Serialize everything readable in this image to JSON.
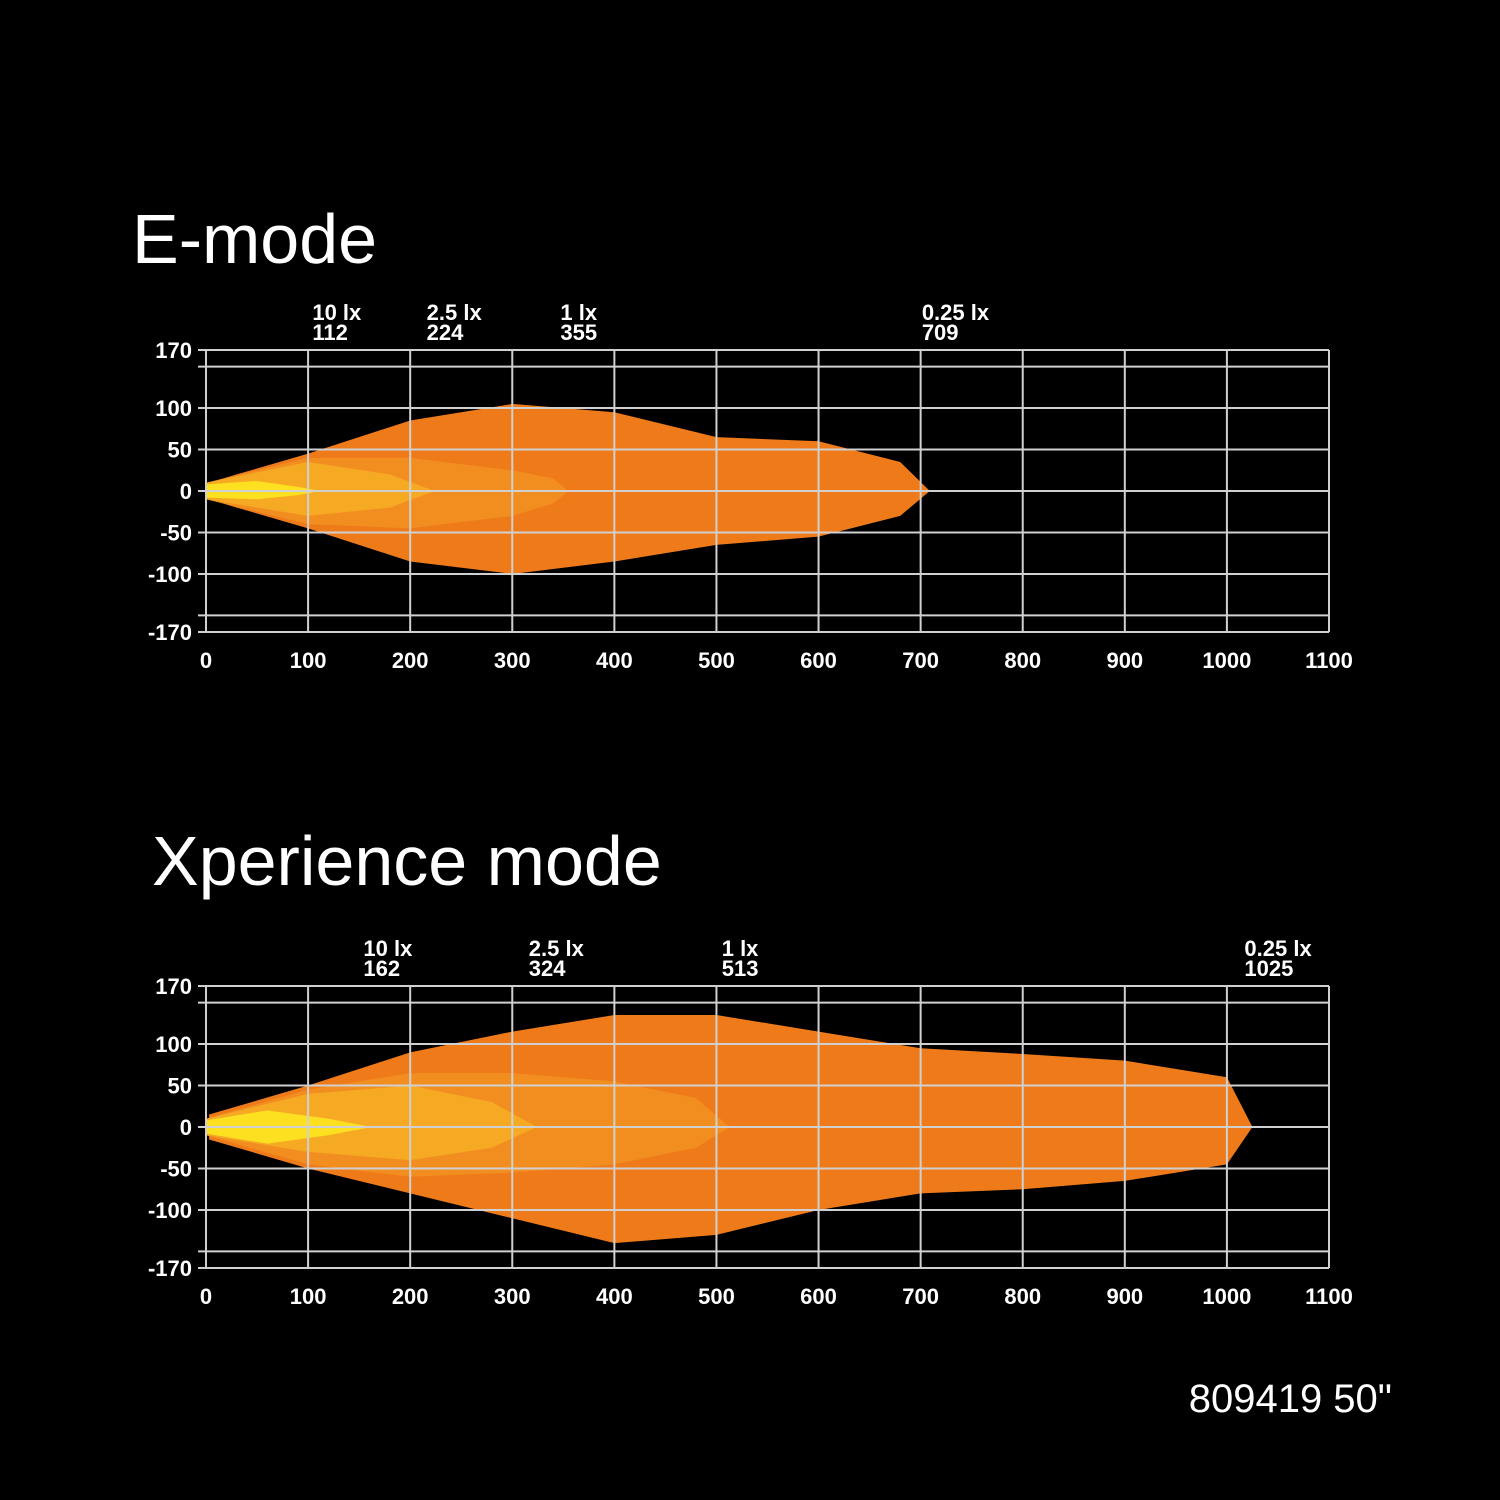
{
  "chart_data": [
    {
      "type": "isolux",
      "title": "E-mode",
      "xlim": [
        0,
        1100
      ],
      "ylim": [
        -170,
        170
      ],
      "xticks": [
        0,
        100,
        200,
        300,
        400,
        500,
        600,
        700,
        800,
        900,
        1000,
        1100
      ],
      "yticks": [
        -170,
        {
          "value": -150,
          "label": null
        },
        -100,
        -50,
        0,
        50,
        100,
        {
          "value": 150,
          "label": null
        },
        170
      ],
      "grid": true,
      "series": [
        {
          "name": "0.25 lx",
          "reach": 709,
          "color": "#ee7a1a",
          "x": [
            3,
            30,
            100,
            200,
            300,
            400,
            500,
            600,
            680,
            709
          ],
          "upper": [
            10,
            20,
            45,
            85,
            105,
            95,
            65,
            60,
            35,
            0
          ],
          "lower": [
            -10,
            -20,
            -45,
            -85,
            -100,
            -85,
            -65,
            -55,
            -30,
            0
          ]
        },
        {
          "name": "1 lx",
          "reach": 355,
          "color": "#f28e1f",
          "x": [
            0,
            100,
            200,
            300,
            340,
            355
          ],
          "upper": [
            10,
            40,
            40,
            25,
            15,
            0
          ],
          "lower": [
            -10,
            -40,
            -45,
            -30,
            -15,
            0
          ]
        },
        {
          "name": "2.5 lx",
          "reach": 224,
          "color": "#f6aa24",
          "x": [
            0,
            100,
            180,
            224
          ],
          "upper": [
            10,
            35,
            20,
            0
          ],
          "lower": [
            -10,
            -30,
            -20,
            0
          ]
        },
        {
          "name": "10 lx",
          "reach": 112,
          "color": "#fde020",
          "x": [
            0,
            50,
            90,
            112
          ],
          "upper": [
            8,
            12,
            5,
            0
          ],
          "lower": [
            -8,
            -10,
            -5,
            0
          ]
        }
      ]
    },
    {
      "type": "isolux",
      "title": "Xperience mode",
      "xlim": [
        0,
        1100
      ],
      "ylim": [
        -170,
        170
      ],
      "xticks": [
        0,
        100,
        200,
        300,
        400,
        500,
        600,
        700,
        800,
        900,
        1000,
        1100
      ],
      "yticks": [
        -170,
        {
          "value": -150,
          "label": null
        },
        -100,
        -50,
        0,
        50,
        100,
        {
          "value": 150,
          "label": null
        },
        170
      ],
      "grid": true,
      "series": [
        {
          "name": "0.25 lx",
          "reach": 1025,
          "color": "#ee7a1a",
          "x": [
            3,
            100,
            200,
            300,
            400,
            500,
            600,
            700,
            800,
            900,
            1000,
            1025
          ],
          "upper": [
            15,
            50,
            90,
            115,
            135,
            135,
            115,
            95,
            88,
            80,
            60,
            0
          ],
          "lower": [
            -15,
            -50,
            -80,
            -110,
            -140,
            -130,
            -100,
            -80,
            -75,
            -65,
            -45,
            0
          ]
        },
        {
          "name": "1 lx",
          "reach": 513,
          "color": "#f28e1f",
          "x": [
            0,
            100,
            200,
            300,
            400,
            480,
            513
          ],
          "upper": [
            10,
            45,
            65,
            65,
            55,
            35,
            0
          ],
          "lower": [
            -10,
            -45,
            -60,
            -55,
            -45,
            -25,
            0
          ]
        },
        {
          "name": "2.5 lx",
          "reach": 324,
          "color": "#f6aa24",
          "x": [
            0,
            100,
            200,
            280,
            324
          ],
          "upper": [
            10,
            40,
            50,
            30,
            0
          ],
          "lower": [
            -10,
            -30,
            -40,
            -25,
            0
          ]
        },
        {
          "name": "10 lx",
          "reach": 162,
          "color": "#fde020",
          "x": [
            0,
            60,
            120,
            162
          ],
          "upper": [
            8,
            20,
            10,
            0
          ],
          "lower": [
            -8,
            -20,
            -10,
            0
          ]
        }
      ]
    }
  ],
  "footer": "809419 50\""
}
